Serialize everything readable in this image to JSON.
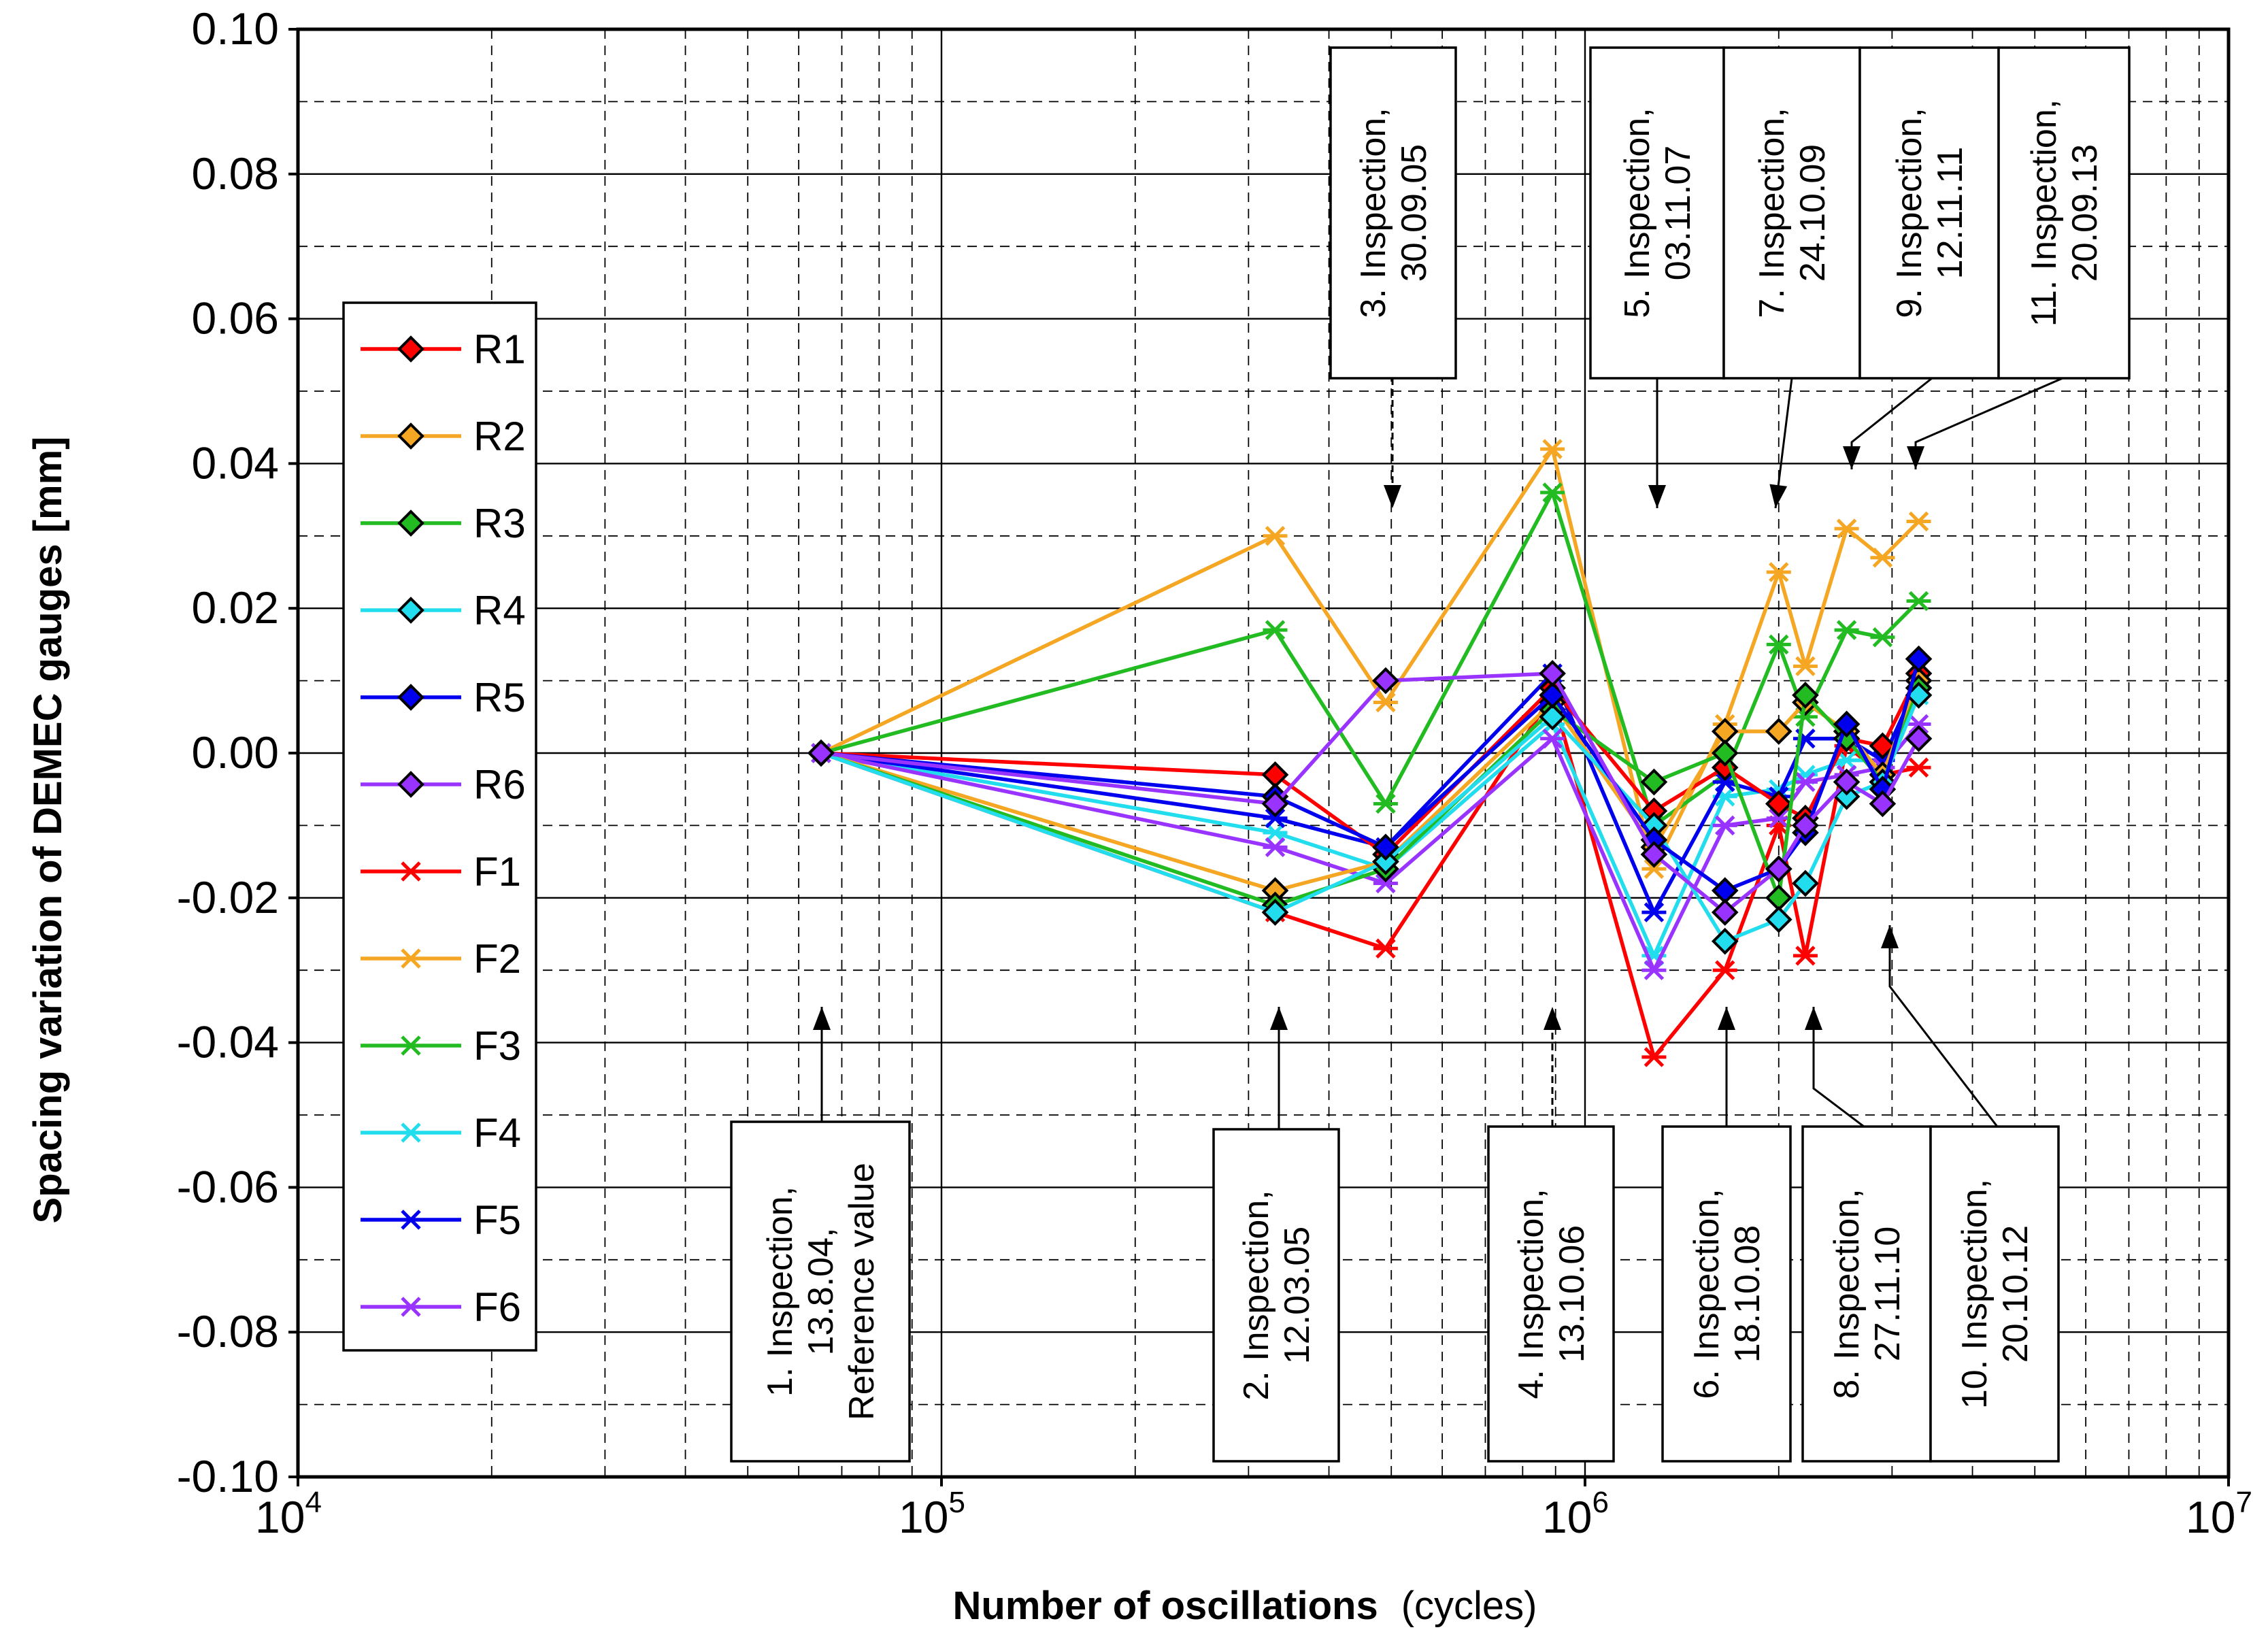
{
  "chart_data": {
    "type": "line",
    "title": "",
    "xlabel": "Number of oscillations",
    "xlabel_unit": "(cycles)",
    "ylabel": "Spacing variation of DEMEC gauges [mm]",
    "xscale": "log",
    "xlim": [
      10000,
      10000000
    ],
    "ylim": [
      -0.1,
      0.1
    ],
    "grid": true,
    "legend_position": "left",
    "y_ticks": [
      "0.10",
      "0.08",
      "0.06",
      "0.04",
      "0.02",
      "0.00",
      "-0.02",
      "-0.04",
      "-0.06",
      "-0.08",
      "-0.10"
    ],
    "x_ticks": [
      {
        "base": "10",
        "exp": "4"
      },
      {
        "base": "10",
        "exp": "5"
      },
      {
        "base": "10",
        "exp": "6"
      },
      {
        "base": "10",
        "exp": "7"
      }
    ],
    "x": [
      65000,
      330000,
      490000,
      890000,
      1280000,
      1650000,
      2000000,
      2200000,
      2550000,
      2900000,
      3300000
    ],
    "series": [
      {
        "name": "R1",
        "marker": "diamond",
        "color": "#ff0000",
        "values": [
          0,
          -0.003,
          -0.014,
          0.009,
          -0.008,
          -0.002,
          -0.007,
          -0.009,
          0.002,
          0.001,
          0.011
        ]
      },
      {
        "name": "R2",
        "marker": "diamond",
        "color": "#f5a623",
        "values": [
          0,
          -0.019,
          -0.015,
          0.007,
          -0.013,
          0.003,
          0.003,
          0.007,
          0.003,
          -0.003,
          0.01
        ]
      },
      {
        "name": "R3",
        "marker": "diamond",
        "color": "#22bb22",
        "values": [
          0,
          -0.021,
          -0.016,
          0.006,
          -0.004,
          0.0,
          -0.02,
          0.008,
          0.002,
          -0.004,
          0.009
        ]
      },
      {
        "name": "R4",
        "marker": "diamond",
        "color": "#22ddee",
        "values": [
          0,
          -0.022,
          -0.015,
          0.005,
          -0.01,
          -0.026,
          -0.023,
          -0.018,
          -0.006,
          -0.004,
          0.008
        ]
      },
      {
        "name": "R5",
        "marker": "diamond",
        "color": "#0000ee",
        "values": [
          0,
          -0.006,
          -0.013,
          0.008,
          -0.012,
          -0.019,
          -0.016,
          -0.011,
          0.004,
          -0.005,
          0.013
        ]
      },
      {
        "name": "R6",
        "marker": "diamond",
        "color": "#9933ff",
        "values": [
          0,
          -0.007,
          0.01,
          0.011,
          -0.014,
          -0.022,
          -0.016,
          -0.01,
          -0.004,
          -0.007,
          0.002
        ]
      },
      {
        "name": "F1",
        "marker": "star",
        "color": "#ff0000",
        "values": [
          0,
          -0.022,
          -0.027,
          0.008,
          -0.042,
          -0.03,
          -0.01,
          -0.028,
          0.001,
          -0.003,
          -0.002
        ]
      },
      {
        "name": "F2",
        "marker": "star",
        "color": "#f5a623",
        "values": [
          0,
          0.03,
          0.007,
          0.042,
          -0.016,
          0.004,
          0.025,
          0.012,
          0.031,
          0.027,
          0.032
        ]
      },
      {
        "name": "F3",
        "marker": "star",
        "color": "#22bb22",
        "values": [
          0,
          0.017,
          -0.007,
          0.036,
          -0.01,
          -0.003,
          0.015,
          0.005,
          0.017,
          0.016,
          0.021
        ]
      },
      {
        "name": "F4",
        "marker": "star",
        "color": "#22ddee",
        "values": [
          0,
          -0.011,
          -0.016,
          0.004,
          -0.028,
          -0.006,
          -0.005,
          -0.003,
          -0.001,
          -0.001,
          0.008
        ]
      },
      {
        "name": "F5",
        "marker": "star",
        "color": "#0000ee",
        "values": [
          0,
          -0.009,
          -0.013,
          0.011,
          -0.022,
          -0.004,
          -0.006,
          0.002,
          0.002,
          -0.001,
          0.01
        ]
      },
      {
        "name": "F6",
        "marker": "star",
        "color": "#9933ff",
        "values": [
          0,
          -0.013,
          -0.018,
          0.002,
          -0.03,
          -0.01,
          -0.009,
          -0.004,
          -0.003,
          -0.002,
          0.004
        ]
      }
    ],
    "annotations": [
      {
        "id": "insp1",
        "lines": [
          "1. Inspection,",
          "13.8.04,",
          "Reference value"
        ],
        "x": 65000
      },
      {
        "id": "insp2",
        "lines": [
          "2. Inspection,",
          "12.03.05"
        ],
        "x": 330000
      },
      {
        "id": "insp3",
        "lines": [
          "3. Inspection,",
          "30.09.05"
        ],
        "x": 490000
      },
      {
        "id": "insp4",
        "lines": [
          "4. Inspection,",
          "13.10.06"
        ],
        "x": 890000
      },
      {
        "id": "insp5",
        "lines": [
          "5. Inspection,",
          "03.11.07"
        ],
        "x": 1280000
      },
      {
        "id": "insp6",
        "lines": [
          "6. Inspection,",
          "18.10.08"
        ],
        "x": 1650000
      },
      {
        "id": "insp7",
        "lines": [
          "7. Inspection,",
          "24.10.09"
        ],
        "x": 2000000
      },
      {
        "id": "insp8",
        "lines": [
          "8. Inspection,",
          "27.11.10"
        ],
        "x": 2200000
      },
      {
        "id": "insp9",
        "lines": [
          "9. Inspection,",
          "12.11.11"
        ],
        "x": 2550000
      },
      {
        "id": "insp10",
        "lines": [
          "10. Inspection,",
          "20.10.12"
        ],
        "x": 2900000
      },
      {
        "id": "insp11",
        "lines": [
          "11. Inspection,",
          "20.09.13"
        ],
        "x": 3300000
      }
    ]
  }
}
